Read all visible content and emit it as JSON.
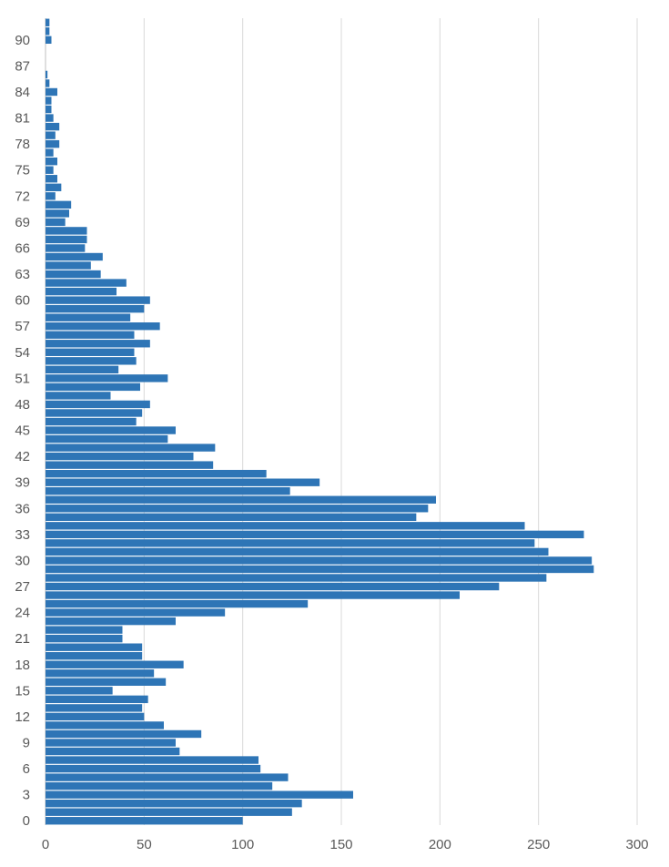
{
  "chart_data": {
    "type": "bar",
    "orientation": "horizontal",
    "title": "",
    "xlabel": "",
    "ylabel": "",
    "xlim": [
      0,
      300
    ],
    "x_ticks": [
      0,
      50,
      100,
      150,
      200,
      250,
      300
    ],
    "y_tick_labels": [
      "0",
      "3",
      "6",
      "9",
      "12",
      "15",
      "18",
      "21",
      "24",
      "27",
      "30",
      "33",
      "36",
      "39",
      "42",
      "45",
      "48",
      "51",
      "54",
      "57",
      "60",
      "63",
      "66",
      "69",
      "72",
      "75",
      "78",
      "81",
      "84",
      "87",
      "90"
    ],
    "grid": true,
    "bar_color": "#2e75b6",
    "categories": [
      0,
      1,
      2,
      3,
      4,
      5,
      6,
      7,
      8,
      9,
      10,
      11,
      12,
      13,
      14,
      15,
      16,
      17,
      18,
      19,
      20,
      21,
      22,
      23,
      24,
      25,
      26,
      27,
      28,
      29,
      30,
      31,
      32,
      33,
      34,
      35,
      36,
      37,
      38,
      39,
      40,
      41,
      42,
      43,
      44,
      45,
      46,
      47,
      48,
      49,
      50,
      51,
      52,
      53,
      54,
      55,
      56,
      57,
      58,
      59,
      60,
      61,
      62,
      63,
      64,
      65,
      66,
      67,
      68,
      69,
      70,
      71,
      72,
      73,
      74,
      75,
      76,
      77,
      78,
      79,
      80,
      81,
      82,
      83,
      84,
      85,
      86,
      87,
      88,
      89,
      90,
      91,
      92
    ],
    "values": [
      100,
      125,
      130,
      156,
      115,
      123,
      109,
      108,
      68,
      66,
      79,
      60,
      50,
      49,
      52,
      34,
      61,
      55,
      70,
      49,
      49,
      39,
      39,
      66,
      91,
      133,
      210,
      230,
      254,
      278,
      277,
      255,
      248,
      273,
      243,
      188,
      194,
      198,
      124,
      139,
      112,
      85,
      75,
      86,
      62,
      66,
      46,
      49,
      53,
      33,
      48,
      62,
      37,
      46,
      45,
      53,
      45,
      58,
      43,
      50,
      53,
      36,
      41,
      28,
      23,
      29,
      20,
      21,
      21,
      10,
      12,
      13,
      5,
      8,
      6,
      4,
      6,
      4,
      7,
      5,
      7,
      4,
      3,
      3,
      6,
      2,
      1,
      0,
      0,
      0,
      3,
      2,
      2
    ]
  }
}
